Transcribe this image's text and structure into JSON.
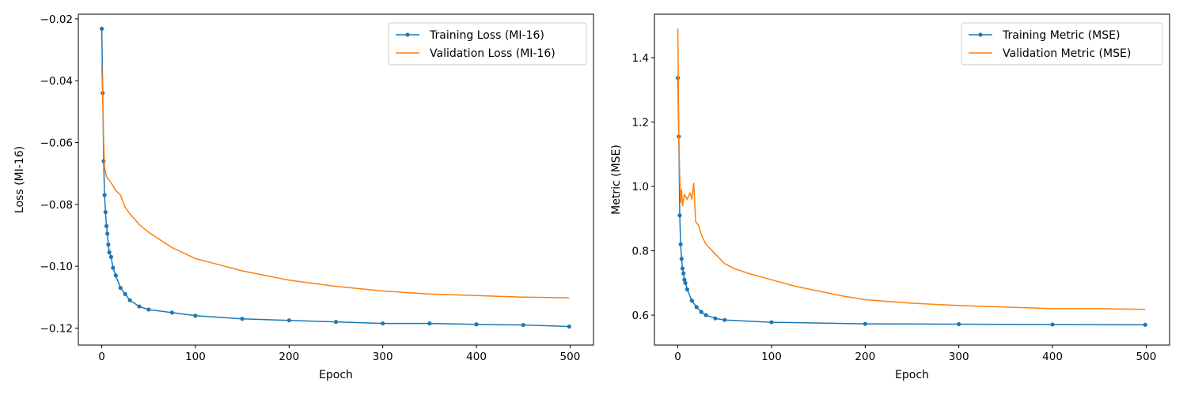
{
  "colors": {
    "training": "#1f77b4",
    "validation": "#ff7f0e"
  },
  "chart_data": [
    {
      "type": "line",
      "xlabel": "Epoch",
      "ylabel": "Loss (MI-16)",
      "xlim": [
        -25,
        525
      ],
      "ylim": [
        -0.1255,
        -0.0185
      ],
      "xticks": [
        0,
        100,
        200,
        300,
        400,
        500
      ],
      "xtick_labels": [
        "0",
        "100",
        "200",
        "300",
        "400",
        "500"
      ],
      "yticks": [
        -0.02,
        -0.04,
        -0.06,
        -0.08,
        -0.1,
        -0.12
      ],
      "ytick_labels": [
        "−0.02",
        "−0.04",
        "−0.06",
        "−0.08",
        "−0.10",
        "−0.12"
      ],
      "grid": false,
      "legend": "top-right",
      "series": [
        {
          "name": "Training Loss (MI-16)",
          "marker": true,
          "x": [
            0,
            1,
            2,
            3,
            4,
            5,
            6,
            7,
            8,
            10,
            12,
            15,
            20,
            25,
            30,
            40,
            50,
            75,
            100,
            150,
            200,
            250,
            300,
            350,
            400,
            450,
            499
          ],
          "y": [
            -0.0232,
            -0.044,
            -0.066,
            -0.077,
            -0.0825,
            -0.087,
            -0.0895,
            -0.093,
            -0.0955,
            -0.097,
            -0.1005,
            -0.103,
            -0.107,
            -0.109,
            -0.111,
            -0.113,
            -0.114,
            -0.115,
            -0.116,
            -0.117,
            -0.1175,
            -0.118,
            -0.1185,
            -0.1185,
            -0.1188,
            -0.119,
            -0.1195
          ]
        },
        {
          "name": "Validation Loss (MI-16)",
          "marker": false,
          "x": [
            0,
            1,
            2,
            3,
            5,
            10,
            15,
            20,
            25,
            30,
            40,
            50,
            60,
            75,
            100,
            125,
            150,
            175,
            200,
            250,
            300,
            350,
            400,
            450,
            499
          ],
          "y": [
            -0.035,
            -0.046,
            -0.06,
            -0.068,
            -0.071,
            -0.073,
            -0.0755,
            -0.077,
            -0.081,
            -0.083,
            -0.0865,
            -0.089,
            -0.091,
            -0.094,
            -0.0975,
            -0.0995,
            -0.1015,
            -0.103,
            -0.1045,
            -0.1065,
            -0.108,
            -0.109,
            -0.1095,
            -0.11,
            -0.1102
          ]
        }
      ]
    },
    {
      "type": "line",
      "xlabel": "Epoch",
      "ylabel": "Metric (MSE)",
      "xlim": [
        -25,
        525
      ],
      "ylim": [
        0.507,
        1.535
      ],
      "xticks": [
        0,
        100,
        200,
        300,
        400,
        500
      ],
      "xtick_labels": [
        "0",
        "100",
        "200",
        "300",
        "400",
        "500"
      ],
      "yticks": [
        0.6,
        0.8,
        1.0,
        1.2,
        1.4
      ],
      "ytick_labels": [
        "0.6",
        "0.8",
        "1.0",
        "1.2",
        "1.4"
      ],
      "grid": false,
      "legend": "top-right",
      "series": [
        {
          "name": "Training Metric (MSE)",
          "marker": true,
          "x": [
            0,
            1,
            2,
            3,
            4,
            5,
            6,
            7,
            8,
            10,
            15,
            20,
            25,
            30,
            40,
            50,
            100,
            200,
            300,
            400,
            499
          ],
          "y": [
            1.337,
            1.155,
            0.91,
            0.82,
            0.775,
            0.745,
            0.73,
            0.71,
            0.7,
            0.68,
            0.645,
            0.625,
            0.61,
            0.6,
            0.59,
            0.585,
            0.578,
            0.573,
            0.572,
            0.571,
            0.57
          ]
        },
        {
          "name": "Validation Metric (MSE)",
          "marker": false,
          "x": [
            0,
            1,
            2,
            3,
            4,
            5,
            7,
            10,
            13,
            15,
            17,
            19,
            22,
            25,
            30,
            40,
            50,
            60,
            75,
            100,
            125,
            150,
            175,
            200,
            250,
            300,
            350,
            400,
            450,
            499
          ],
          "y": [
            1.49,
            1.15,
            1.03,
            0.95,
            0.99,
            0.94,
            0.975,
            0.96,
            0.98,
            0.96,
            1.01,
            0.89,
            0.88,
            0.85,
            0.82,
            0.79,
            0.76,
            0.745,
            0.73,
            0.71,
            0.69,
            0.675,
            0.66,
            0.648,
            0.637,
            0.63,
            0.625,
            0.62,
            0.62,
            0.618
          ]
        }
      ]
    }
  ]
}
